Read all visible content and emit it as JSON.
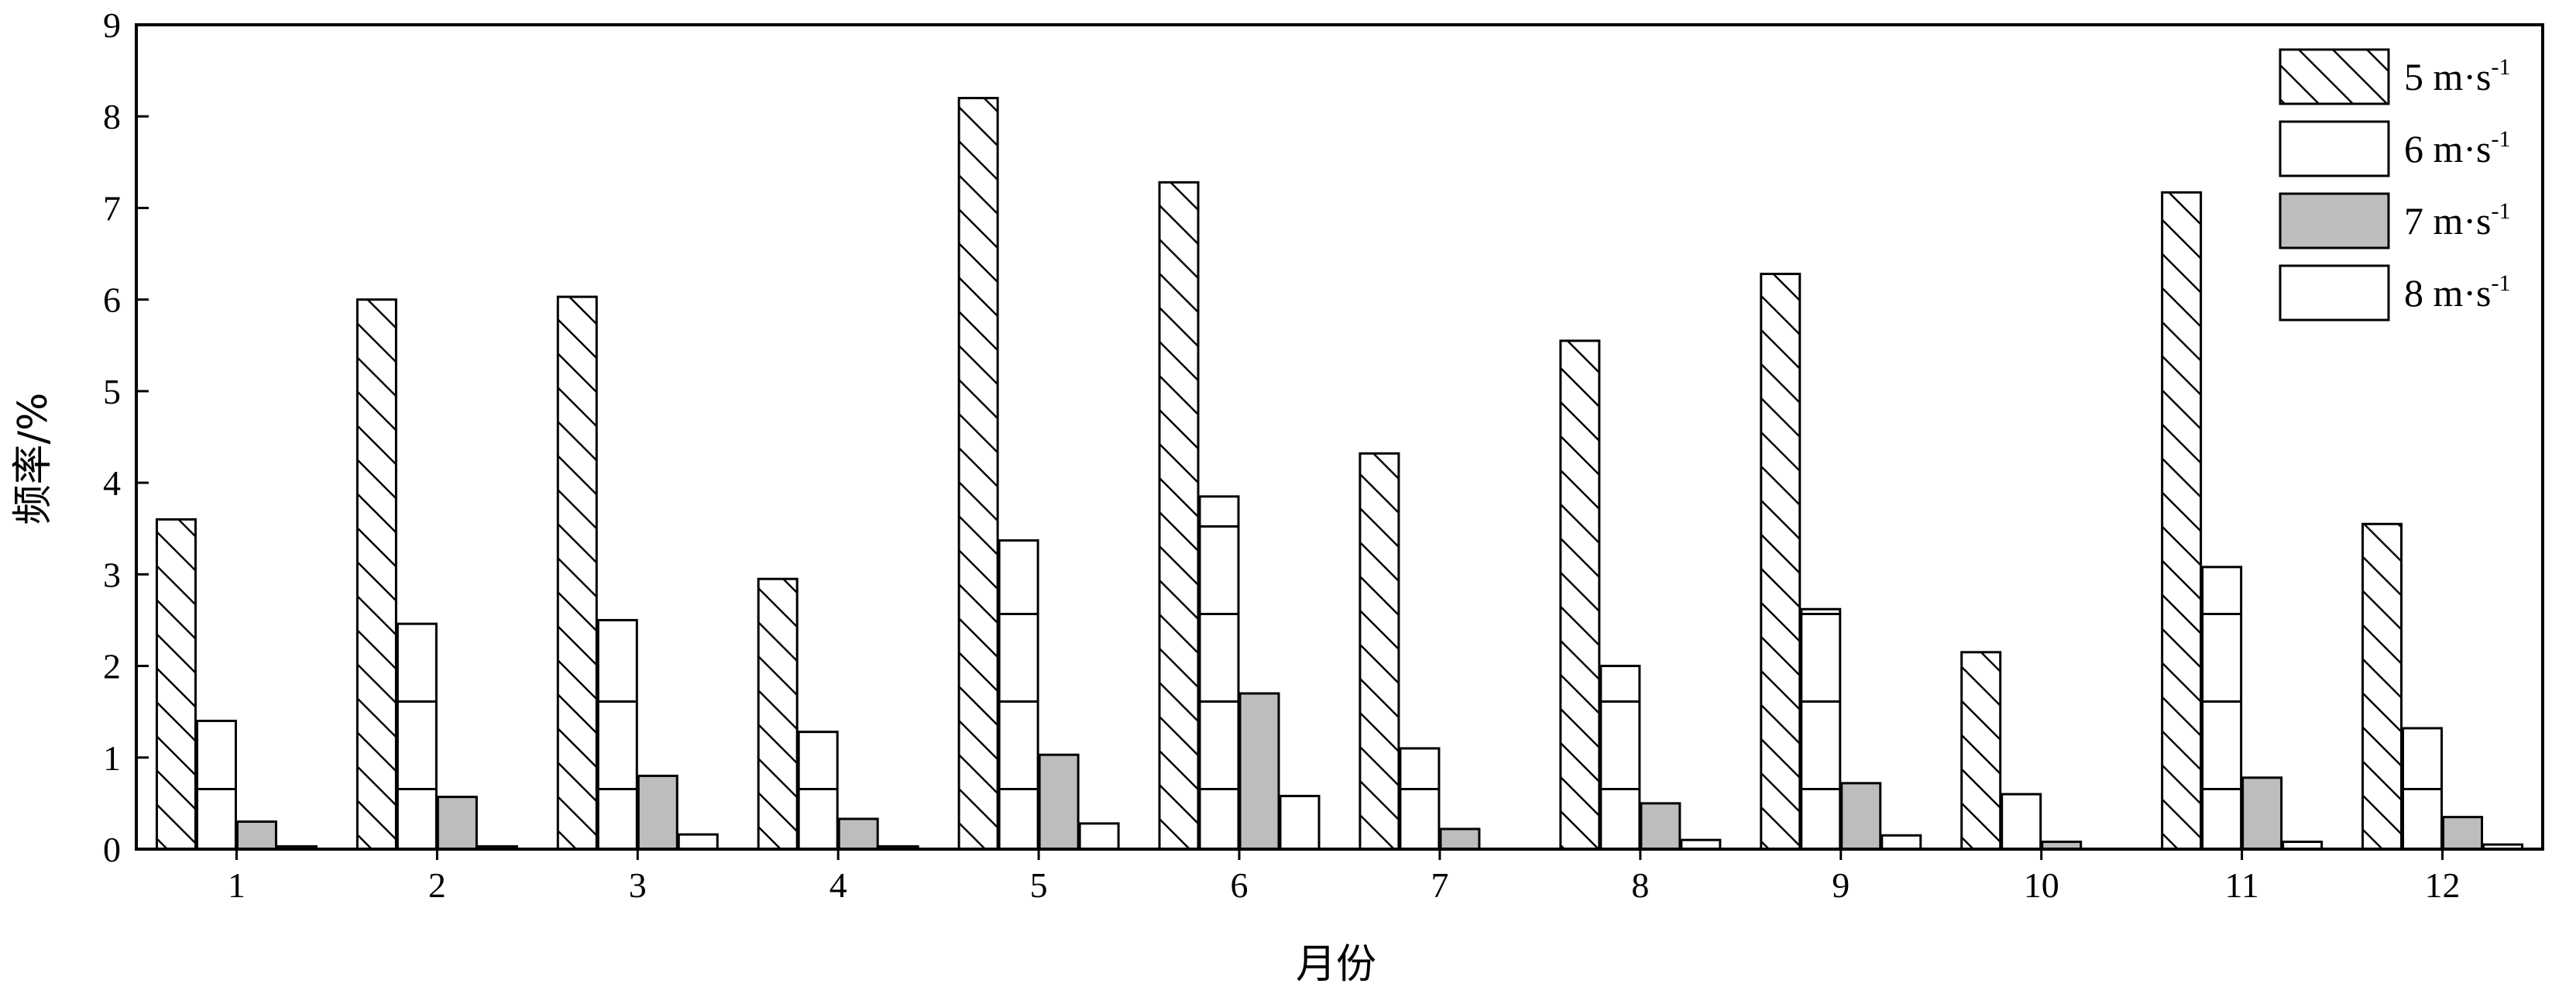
{
  "chart_data": {
    "type": "bar",
    "categories": [
      "1",
      "2",
      "3",
      "4",
      "5",
      "6",
      "7",
      "8",
      "9",
      "10",
      "11",
      "12"
    ],
    "series": [
      {
        "name": "5 m·s-1",
        "pattern": "diagonal-hatch",
        "values": [
          3.6,
          6.0,
          6.03,
          2.95,
          8.2,
          7.28,
          4.32,
          5.55,
          6.28,
          2.15,
          7.17,
          3.55
        ]
      },
      {
        "name": "6 m·s-1",
        "pattern": "horizontal-lines",
        "values": [
          1.4,
          2.46,
          2.5,
          1.28,
          3.37,
          3.85,
          1.1,
          2.0,
          2.62,
          0.6,
          3.08,
          1.32
        ]
      },
      {
        "name": "7 m·s-1",
        "pattern": "solid-gray",
        "values": [
          0.3,
          0.57,
          0.8,
          0.33,
          1.03,
          1.7,
          0.22,
          0.5,
          0.72,
          0.08,
          0.78,
          0.35
        ]
      },
      {
        "name": "8 m·s-1",
        "pattern": "blank",
        "values": [
          0.03,
          0.03,
          0.16,
          0.03,
          0.28,
          0.58,
          0.0,
          0.1,
          0.15,
          0.0,
          0.08,
          0.05
        ]
      }
    ],
    "title": "",
    "xlabel": "月份",
    "ylabel": "频率/%",
    "ylim": [
      0,
      9
    ],
    "yticks": [
      "0",
      "1",
      "2",
      "3",
      "4",
      "5",
      "6",
      "7",
      "8",
      "9"
    ],
    "legend_position": "top-right",
    "grid": false,
    "colors": {
      "axis": "#000000",
      "gray_fill": "#bdbdbd",
      "background": "#ffffff"
    }
  }
}
